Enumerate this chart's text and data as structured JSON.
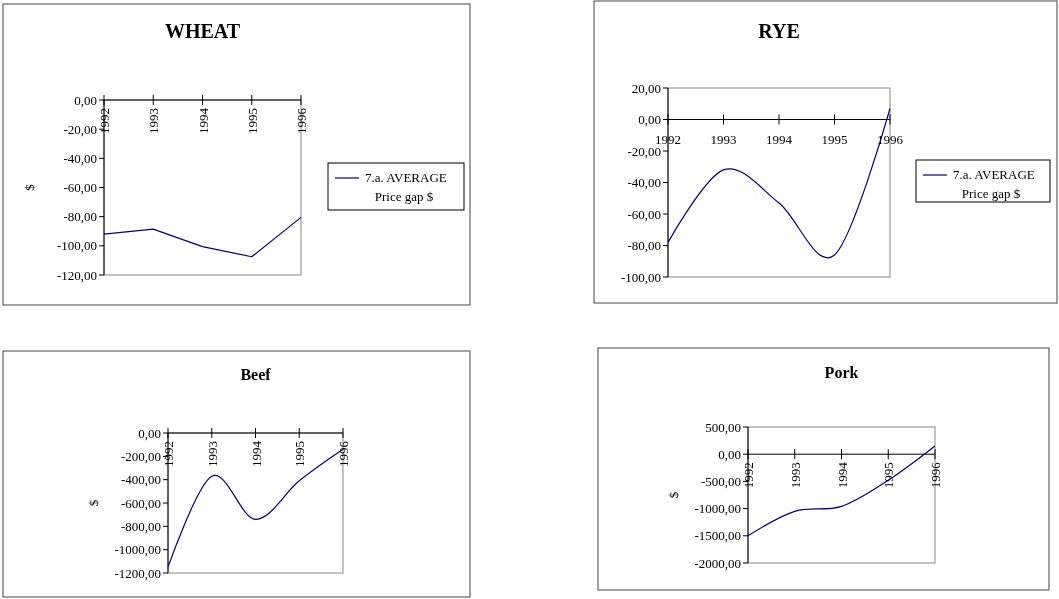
{
  "chart_data": [
    {
      "type": "line",
      "title": "WHEAT",
      "ylabel": "$",
      "categories": [
        "1992",
        "1993",
        "1994",
        "1995",
        "1996"
      ],
      "series": [
        {
          "name": "7.a. AVERAGE Price gap $",
          "color": "#000080",
          "values": [
            -92,
            -88.5,
            -100.5,
            -107.5,
            -80.5
          ]
        }
      ],
      "ylim": [
        -120,
        0
      ],
      "yticks": [
        {
          "value": 0,
          "label": "0,00"
        },
        {
          "value": -20,
          "label": "-20,00"
        },
        {
          "value": -40,
          "label": "-40,00"
        },
        {
          "value": -60,
          "label": "-60,00"
        },
        {
          "value": -80,
          "label": "-80,00"
        },
        {
          "value": -100,
          "label": "-100,00"
        },
        {
          "value": -120,
          "label": "-120,00"
        }
      ],
      "legend": "right",
      "grid": false
    },
    {
      "type": "line",
      "title": "RYE",
      "categories": [
        "1992",
        "1993",
        "1994",
        "1995",
        "1996"
      ],
      "series": [
        {
          "name": "7.a. AVERAGE Price gap $",
          "color": "#000080",
          "values": [
            -78,
            -32,
            -53,
            -86,
            7
          ]
        }
      ],
      "ylim": [
        -100,
        20
      ],
      "yticks": [
        {
          "value": 20,
          "label": "20,00"
        },
        {
          "value": 0,
          "label": "0,00"
        },
        {
          "value": -20,
          "label": "-20,00"
        },
        {
          "value": -40,
          "label": "-40,00"
        },
        {
          "value": -60,
          "label": "-60,00"
        },
        {
          "value": -80,
          "label": "-80,00"
        },
        {
          "value": -100,
          "label": "-100,00"
        }
      ],
      "legend": "right",
      "grid": false
    },
    {
      "type": "line",
      "title": "Beef",
      "ylabel": "$",
      "categories": [
        "1992",
        "1993",
        "1994",
        "1995",
        "1996"
      ],
      "series": [
        {
          "color": "#000080",
          "values": [
            -1150,
            -370,
            -740,
            -410,
            -140
          ]
        }
      ],
      "ylim": [
        -1200,
        0
      ],
      "yticks": [
        {
          "value": 0,
          "label": "0,00"
        },
        {
          "value": -200,
          "label": "-200,00"
        },
        {
          "value": -400,
          "label": "-400,00"
        },
        {
          "value": -600,
          "label": "-600,00"
        },
        {
          "value": -800,
          "label": "-800,00"
        },
        {
          "value": -1000,
          "label": "-1000,00"
        },
        {
          "value": -1200,
          "label": "-1200,00"
        }
      ],
      "grid": false
    },
    {
      "type": "line",
      "title": "Pork",
      "ylabel": "$",
      "categories": [
        "1992",
        "1993",
        "1994",
        "1995",
        "1996"
      ],
      "series": [
        {
          "color": "#000080",
          "values": [
            -1500,
            -1050,
            -960,
            -480,
            150
          ]
        }
      ],
      "ylim": [
        -2000,
        500
      ],
      "yticks": [
        {
          "value": 500,
          "label": "500,00"
        },
        {
          "value": 0,
          "label": "0,00"
        },
        {
          "value": -500,
          "label": "-500,00"
        },
        {
          "value": -1000,
          "label": "-1000,00"
        },
        {
          "value": -1500,
          "label": "-1500,00"
        },
        {
          "value": -2000,
          "label": "-2000,00"
        }
      ],
      "grid": false
    }
  ]
}
